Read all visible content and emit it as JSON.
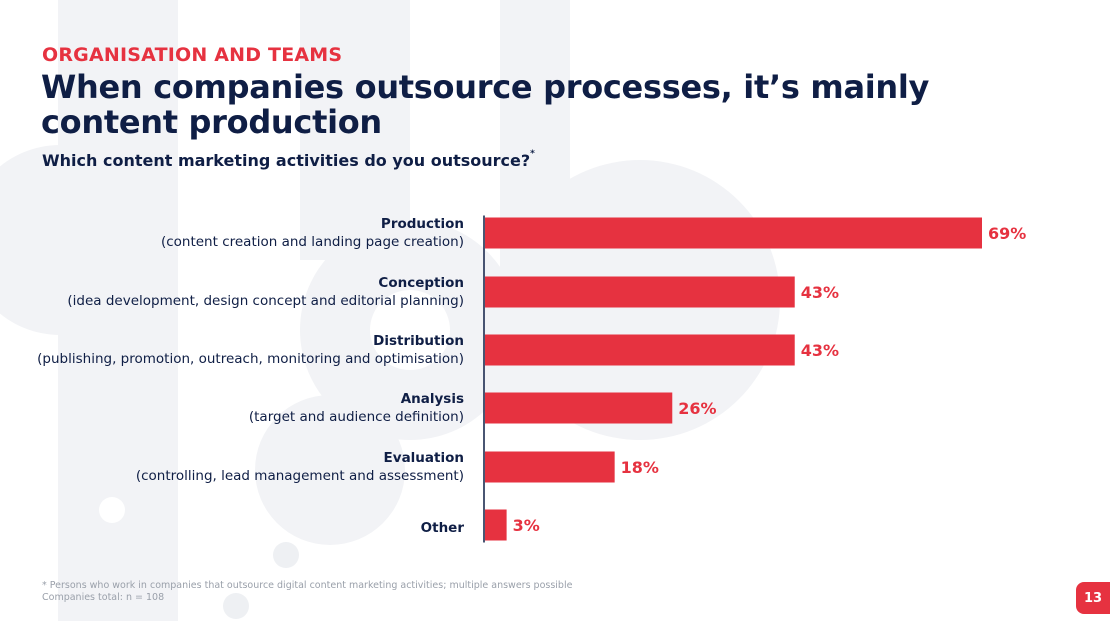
{
  "section_label": "ORGANISATION AND TEAMS",
  "headline": "When companies outsource processes, it’s mainly content production",
  "question": "Which content marketing activities do you outsource?",
  "question_mark": "*",
  "categories": [
    {
      "name": "Production",
      "desc": "(content creation and landing page creation)"
    },
    {
      "name": "Conception",
      "desc": "(idea development, design concept and editorial planning)"
    },
    {
      "name": "Distribution",
      "desc": "(publishing, promotion, outreach, monitoring and optimisation)"
    },
    {
      "name": "Analysis",
      "desc": "(target and audience definition)"
    },
    {
      "name": "Evaluation",
      "desc": "(controlling, lead management and assessment)"
    },
    {
      "name": "Other",
      "desc": ""
    }
  ],
  "chart_data": {
    "type": "bar",
    "orientation": "horizontal",
    "categories": [
      "Production",
      "Conception",
      "Distribution",
      "Analysis",
      "Evaluation",
      "Other"
    ],
    "values": [
      69,
      43,
      43,
      26,
      18,
      3
    ],
    "value_labels": [
      "69%",
      "43%",
      "43%",
      "26%",
      "18%",
      "3%"
    ],
    "unit": "%",
    "xlim": [
      0,
      69
    ],
    "grid": false,
    "bar_color": "#e63240"
  },
  "footnote": {
    "line1": "* Persons who work in companies that outsource digital content marketing activities; multiple answers possible",
    "line2": "Companies total: n = 108"
  },
  "page_number": "13",
  "colors": {
    "accent": "#e63240",
    "navy": "#0f1e45",
    "footnote": "#9aa0aa",
    "decoration": "#f1f2f5"
  }
}
